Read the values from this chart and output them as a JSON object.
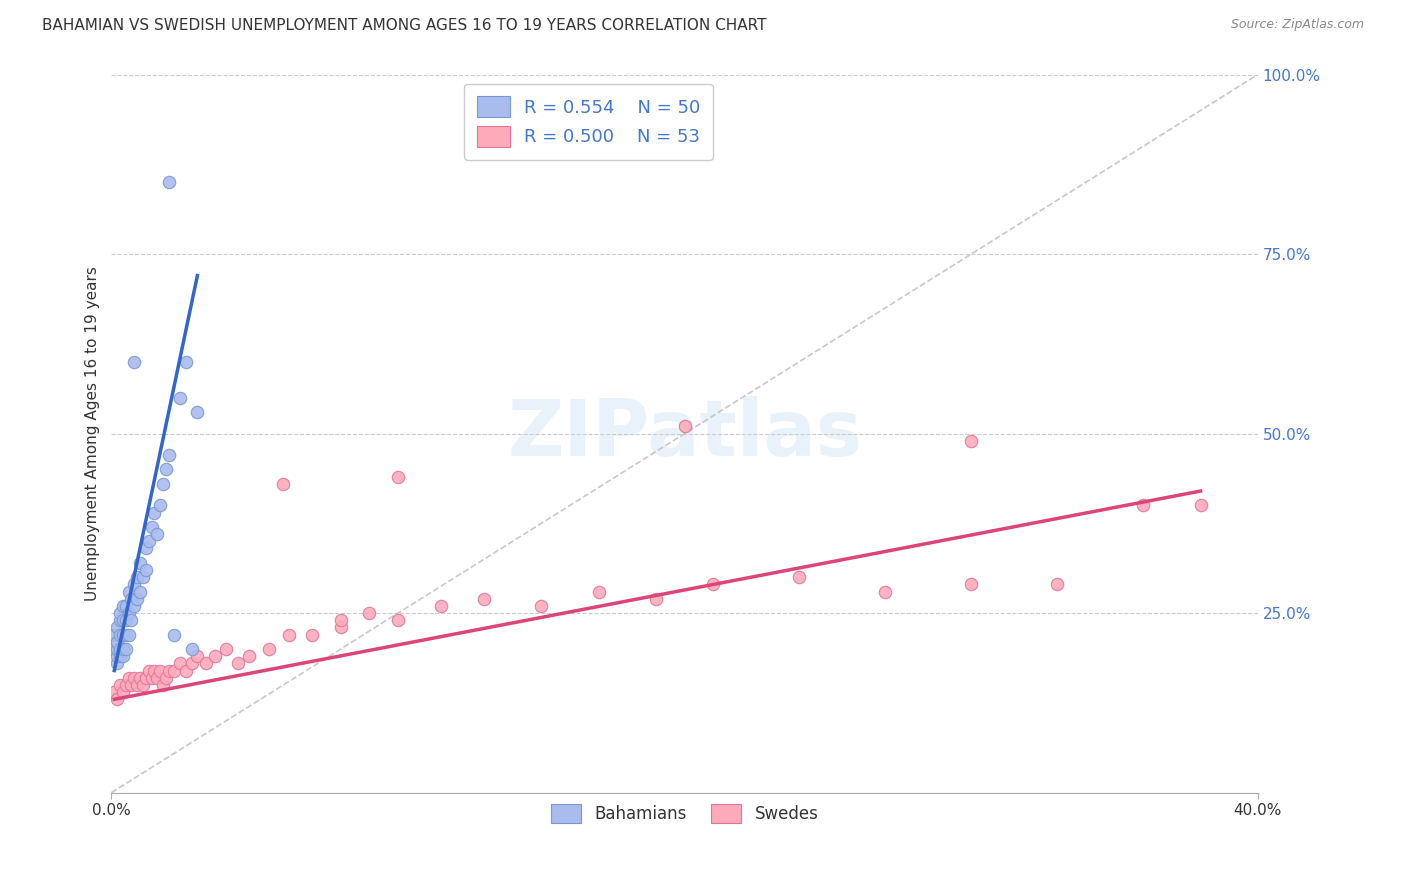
{
  "title": "BAHAMIAN VS SWEDISH UNEMPLOYMENT AMONG AGES 16 TO 19 YEARS CORRELATION CHART",
  "source": "Source: ZipAtlas.com",
  "ylabel": "Unemployment Among Ages 16 to 19 years",
  "xlim": [
    0.0,
    0.4
  ],
  "ylim": [
    0.0,
    1.0
  ],
  "background_color": "#ffffff",
  "grid_color": "#cccccc",
  "bahamian_color": "#aabbee",
  "bahamian_edge_color": "#7799cc",
  "swedish_color": "#ffaabb",
  "swedish_edge_color": "#dd7799",
  "bahamian_line_color": "#3366cc",
  "swedish_line_color": "#dd4477",
  "diagonal_color": "#bbbbbb",
  "R_bahamian": 0.554,
  "N_bahamian": 50,
  "R_swedish": 0.5,
  "N_swedish": 53,
  "legend_bahamian": "Bahamians",
  "legend_swedish": "Swedes",
  "bahamian_x": [
    0.001,
    0.001,
    0.002,
    0.002,
    0.002,
    0.002,
    0.002,
    0.003,
    0.003,
    0.003,
    0.003,
    0.003,
    0.004,
    0.004,
    0.004,
    0.004,
    0.004,
    0.005,
    0.005,
    0.005,
    0.005,
    0.006,
    0.006,
    0.006,
    0.007,
    0.007,
    0.008,
    0.008,
    0.009,
    0.009,
    0.01,
    0.01,
    0.011,
    0.012,
    0.012,
    0.013,
    0.014,
    0.015,
    0.016,
    0.017,
    0.018,
    0.019,
    0.02,
    0.022,
    0.024,
    0.026,
    0.028,
    0.03,
    0.008,
    0.02
  ],
  "bahamian_y": [
    0.2,
    0.22,
    0.18,
    0.19,
    0.2,
    0.21,
    0.23,
    0.19,
    0.2,
    0.22,
    0.24,
    0.25,
    0.19,
    0.2,
    0.22,
    0.24,
    0.26,
    0.2,
    0.22,
    0.24,
    0.26,
    0.22,
    0.25,
    0.28,
    0.24,
    0.27,
    0.26,
    0.29,
    0.27,
    0.3,
    0.28,
    0.32,
    0.3,
    0.31,
    0.34,
    0.35,
    0.37,
    0.39,
    0.36,
    0.4,
    0.43,
    0.45,
    0.47,
    0.22,
    0.55,
    0.6,
    0.2,
    0.53,
    0.6,
    0.85
  ],
  "swedish_x": [
    0.001,
    0.002,
    0.003,
    0.004,
    0.005,
    0.006,
    0.007,
    0.008,
    0.009,
    0.01,
    0.011,
    0.012,
    0.013,
    0.014,
    0.015,
    0.016,
    0.017,
    0.018,
    0.019,
    0.02,
    0.022,
    0.024,
    0.026,
    0.028,
    0.03,
    0.033,
    0.036,
    0.04,
    0.044,
    0.048,
    0.055,
    0.062,
    0.07,
    0.08,
    0.09,
    0.1,
    0.115,
    0.13,
    0.15,
    0.17,
    0.19,
    0.21,
    0.24,
    0.27,
    0.3,
    0.33,
    0.36,
    0.38,
    0.06,
    0.08,
    0.1,
    0.2,
    0.3
  ],
  "swedish_y": [
    0.14,
    0.13,
    0.15,
    0.14,
    0.15,
    0.16,
    0.15,
    0.16,
    0.15,
    0.16,
    0.15,
    0.16,
    0.17,
    0.16,
    0.17,
    0.16,
    0.17,
    0.15,
    0.16,
    0.17,
    0.17,
    0.18,
    0.17,
    0.18,
    0.19,
    0.18,
    0.19,
    0.2,
    0.18,
    0.19,
    0.2,
    0.22,
    0.22,
    0.23,
    0.25,
    0.24,
    0.26,
    0.27,
    0.26,
    0.28,
    0.27,
    0.29,
    0.3,
    0.28,
    0.29,
    0.29,
    0.4,
    0.4,
    0.43,
    0.24,
    0.44,
    0.51,
    0.49
  ],
  "bah_trend_x0": 0.001,
  "bah_trend_x1": 0.03,
  "bah_trend_y0": 0.17,
  "bah_trend_y1": 0.72,
  "swe_trend_x0": 0.001,
  "swe_trend_x1": 0.38,
  "swe_trend_y0": 0.13,
  "swe_trend_y1": 0.42
}
